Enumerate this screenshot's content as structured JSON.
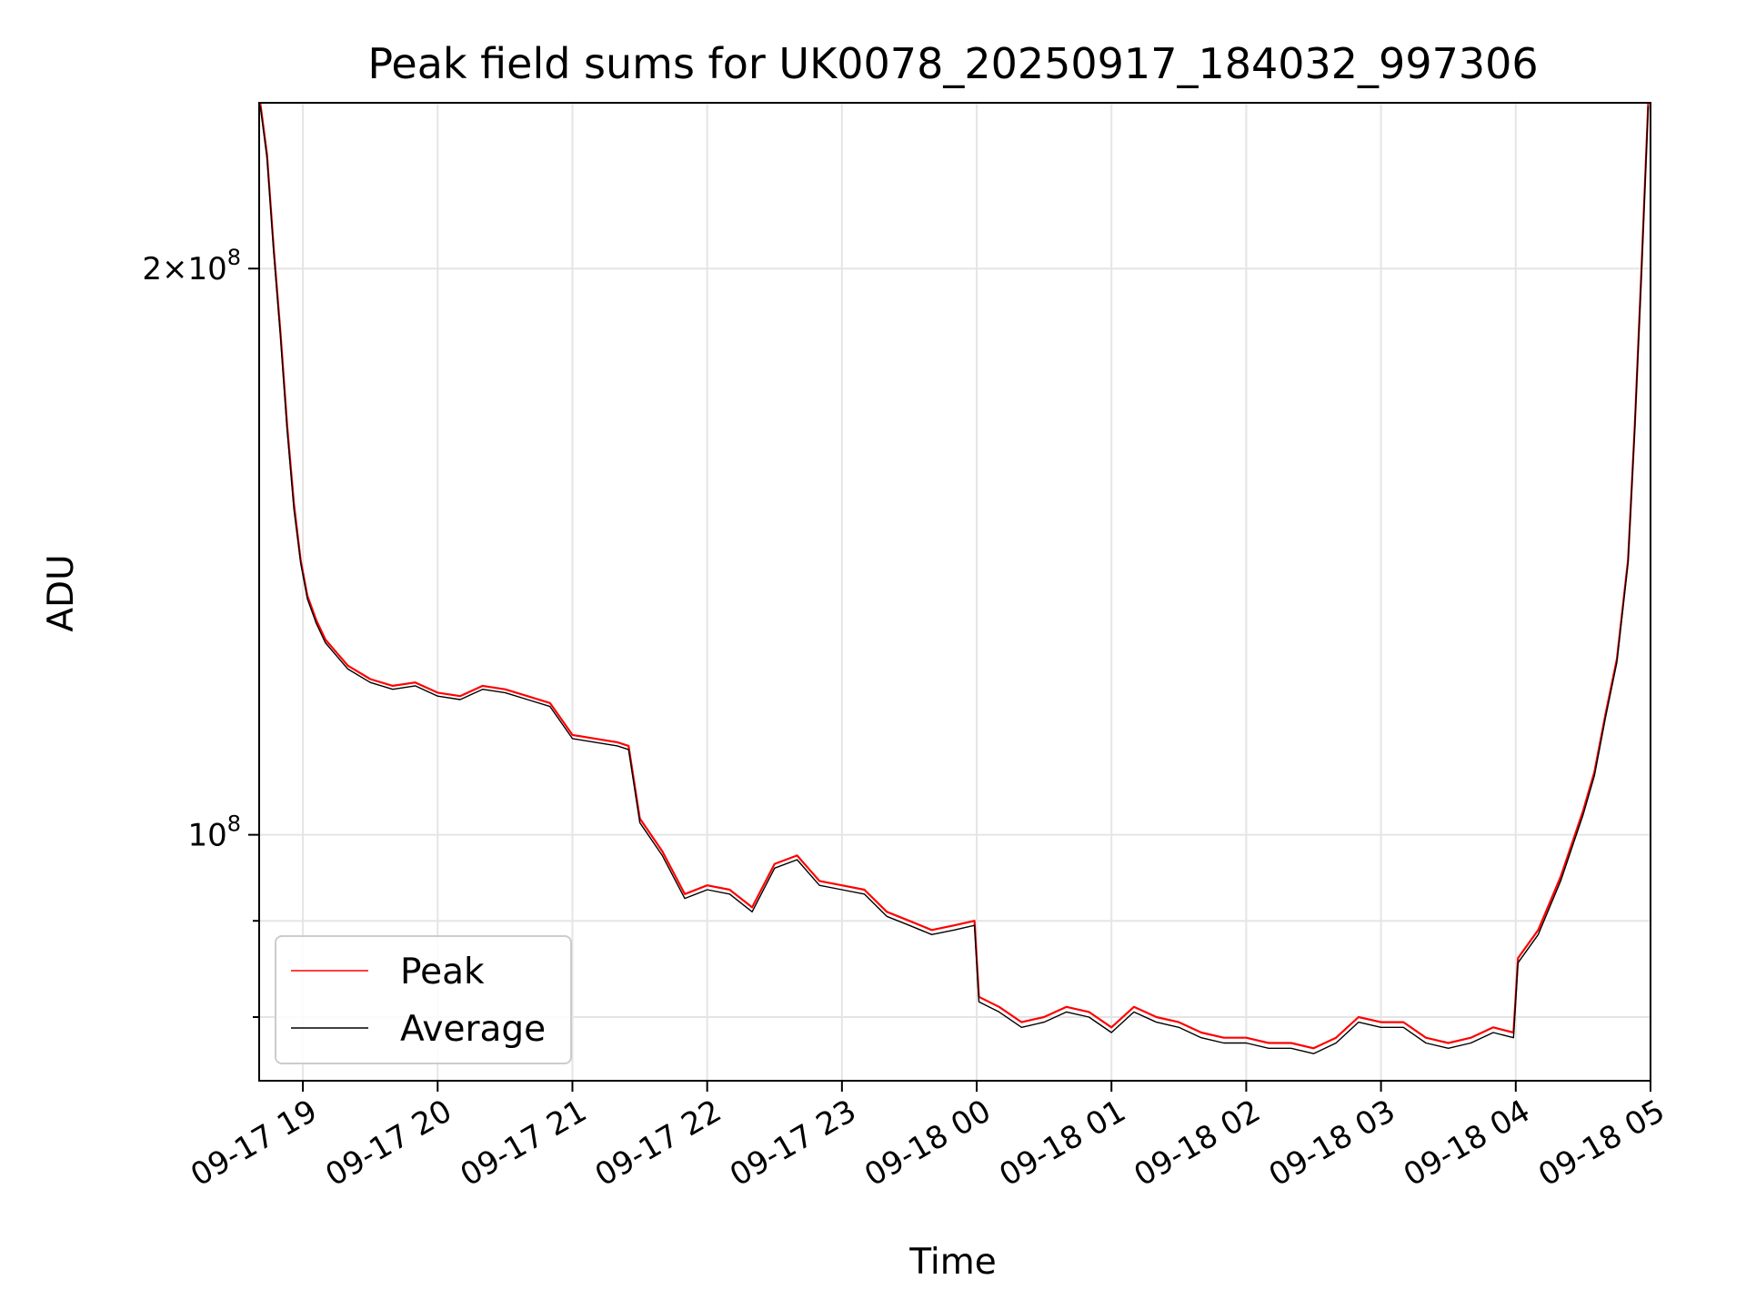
{
  "chart_data": {
    "type": "line",
    "title": "Peak field sums for UK0078_20250917_184032_997306",
    "xlabel": "Time",
    "ylabel": "ADU",
    "y_scale": "log",
    "ylim": [
      74000000,
      245000000
    ],
    "xlim": [
      "2025-09-17T18:40:32",
      "2025-09-18T05:00:00"
    ],
    "grid": true,
    "legend_position": "lower-left",
    "x_ticks": [
      "09-17 19",
      "09-17 20",
      "09-17 21",
      "09-17 22",
      "09-17 23",
      "09-18 00",
      "09-18 01",
      "09-18 02",
      "09-18 03",
      "09-18 04",
      "09-18 05"
    ],
    "x_tick_times": [
      "2025-09-17T19:00",
      "2025-09-17T20:00",
      "2025-09-17T21:00",
      "2025-09-17T22:00",
      "2025-09-17T23:00",
      "2025-09-18T00:00",
      "2025-09-18T01:00",
      "2025-09-18T02:00",
      "2025-09-18T03:00",
      "2025-09-18T04:00",
      "2025-09-18T05:00"
    ],
    "y_ticks": [
      {
        "value": 200000000,
        "label_main": "2×10",
        "label_exp": "8"
      },
      {
        "value": 100000000,
        "label_main": "10",
        "label_exp": "8"
      }
    ],
    "y_minor_ticks": [
      90000000,
      80000000
    ],
    "series": [
      {
        "name": "Peak",
        "color": "#ff0000",
        "x": [
          "2025-09-17T18:41",
          "2025-09-17T18:44",
          "2025-09-17T18:47",
          "2025-09-17T18:50",
          "2025-09-17T18:53",
          "2025-09-17T18:56",
          "2025-09-17T18:59",
          "2025-09-17T19:02",
          "2025-09-17T19:06",
          "2025-09-17T19:10",
          "2025-09-17T19:15",
          "2025-09-17T19:20",
          "2025-09-17T19:30",
          "2025-09-17T19:40",
          "2025-09-17T19:50",
          "2025-09-17T20:00",
          "2025-09-17T20:10",
          "2025-09-17T20:20",
          "2025-09-17T20:30",
          "2025-09-17T20:40",
          "2025-09-17T20:50",
          "2025-09-17T21:00",
          "2025-09-17T21:10",
          "2025-09-17T21:20",
          "2025-09-17T21:25",
          "2025-09-17T21:30",
          "2025-09-17T21:40",
          "2025-09-17T21:50",
          "2025-09-17T22:00",
          "2025-09-17T22:10",
          "2025-09-17T22:20",
          "2025-09-17T22:30",
          "2025-09-17T22:40",
          "2025-09-17T22:50",
          "2025-09-17T23:00",
          "2025-09-17T23:10",
          "2025-09-17T23:20",
          "2025-09-17T23:30",
          "2025-09-17T23:40",
          "2025-09-17T23:50",
          "2025-09-17T23:59",
          "2025-09-18T00:01",
          "2025-09-18T00:10",
          "2025-09-18T00:20",
          "2025-09-18T00:30",
          "2025-09-18T00:40",
          "2025-09-18T00:50",
          "2025-09-18T01:00",
          "2025-09-18T01:10",
          "2025-09-18T01:20",
          "2025-09-18T01:30",
          "2025-09-18T01:40",
          "2025-09-18T01:50",
          "2025-09-18T02:00",
          "2025-09-18T02:10",
          "2025-09-18T02:20",
          "2025-09-18T02:30",
          "2025-09-18T02:40",
          "2025-09-18T02:50",
          "2025-09-18T03:00",
          "2025-09-18T03:10",
          "2025-09-18T03:20",
          "2025-09-18T03:30",
          "2025-09-18T03:40",
          "2025-09-18T03:50",
          "2025-09-18T03:59",
          "2025-09-18T04:01",
          "2025-09-18T04:10",
          "2025-09-18T04:20",
          "2025-09-18T04:30",
          "2025-09-18T04:35",
          "2025-09-18T04:40",
          "2025-09-18T04:45",
          "2025-09-18T04:50",
          "2025-09-18T04:53",
          "2025-09-18T04:56",
          "2025-09-18T04:59"
        ],
        "values": [
          245000000,
          230000000,
          205000000,
          185000000,
          165000000,
          150000000,
          140000000,
          134000000,
          130000000,
          127000000,
          125000000,
          123000000,
          121000000,
          120000000,
          120500000,
          119000000,
          118500000,
          120000000,
          119500000,
          118500000,
          117500000,
          113000000,
          112500000,
          112000000,
          111500000,
          102000000,
          98000000,
          93000000,
          94000000,
          93500000,
          91500000,
          96500000,
          97500000,
          94500000,
          94000000,
          93500000,
          91000000,
          90000000,
          89000000,
          89500000,
          90000000,
          82000000,
          81000000,
          79500000,
          80000000,
          81000000,
          80500000,
          79000000,
          81000000,
          80000000,
          79500000,
          78500000,
          78000000,
          78000000,
          77500000,
          77500000,
          77000000,
          78000000,
          80000000,
          79500000,
          79500000,
          78000000,
          77500000,
          78000000,
          79000000,
          78500000,
          86000000,
          89000000,
          95000000,
          103000000,
          108000000,
          116000000,
          124000000,
          140000000,
          165000000,
          200000000,
          245000000
        ]
      },
      {
        "name": "Average",
        "color": "#000000",
        "x": [
          "2025-09-17T18:41",
          "2025-09-17T18:44",
          "2025-09-17T18:47",
          "2025-09-17T18:50",
          "2025-09-17T18:53",
          "2025-09-17T18:56",
          "2025-09-17T18:59",
          "2025-09-17T19:02",
          "2025-09-17T19:06",
          "2025-09-17T19:10",
          "2025-09-17T19:15",
          "2025-09-17T19:20",
          "2025-09-17T19:30",
          "2025-09-17T19:40",
          "2025-09-17T19:50",
          "2025-09-17T20:00",
          "2025-09-17T20:10",
          "2025-09-17T20:20",
          "2025-09-17T20:30",
          "2025-09-17T20:40",
          "2025-09-17T20:50",
          "2025-09-17T21:00",
          "2025-09-17T21:10",
          "2025-09-17T21:20",
          "2025-09-17T21:25",
          "2025-09-17T21:30",
          "2025-09-17T21:40",
          "2025-09-17T21:50",
          "2025-09-17T22:00",
          "2025-09-17T22:10",
          "2025-09-17T22:20",
          "2025-09-17T22:30",
          "2025-09-17T22:40",
          "2025-09-17T22:50",
          "2025-09-17T23:00",
          "2025-09-17T23:10",
          "2025-09-17T23:20",
          "2025-09-17T23:30",
          "2025-09-17T23:40",
          "2025-09-17T23:50",
          "2025-09-17T23:59",
          "2025-09-18T00:01",
          "2025-09-18T00:10",
          "2025-09-18T00:20",
          "2025-09-18T00:30",
          "2025-09-18T00:40",
          "2025-09-18T00:50",
          "2025-09-18T01:00",
          "2025-09-18T01:10",
          "2025-09-18T01:20",
          "2025-09-18T01:30",
          "2025-09-18T01:40",
          "2025-09-18T01:50",
          "2025-09-18T02:00",
          "2025-09-18T02:10",
          "2025-09-18T02:20",
          "2025-09-18T02:30",
          "2025-09-18T02:40",
          "2025-09-18T02:50",
          "2025-09-18T03:00",
          "2025-09-18T03:10",
          "2025-09-18T03:20",
          "2025-09-18T03:30",
          "2025-09-18T03:40",
          "2025-09-18T03:50",
          "2025-09-18T03:59",
          "2025-09-18T04:01",
          "2025-09-18T04:10",
          "2025-09-18T04:20",
          "2025-09-18T04:30",
          "2025-09-18T04:35",
          "2025-09-18T04:40",
          "2025-09-18T04:45",
          "2025-09-18T04:50",
          "2025-09-18T04:53",
          "2025-09-18T04:56",
          "2025-09-18T04:59"
        ],
        "values": [
          244000000,
          229000000,
          204000000,
          184000000,
          164000000,
          149000000,
          139500000,
          133500000,
          129500000,
          126500000,
          124500000,
          122500000,
          120500000,
          119500000,
          120000000,
          118500000,
          118000000,
          119500000,
          119000000,
          118000000,
          117000000,
          112500000,
          112000000,
          111500000,
          111000000,
          101500000,
          97500000,
          92500000,
          93500000,
          93000000,
          91000000,
          96000000,
          97000000,
          94000000,
          93500000,
          93000000,
          90500000,
          89500000,
          88500000,
          89000000,
          89500000,
          81500000,
          80500000,
          79000000,
          79500000,
          80500000,
          80000000,
          78500000,
          80500000,
          79500000,
          79000000,
          78000000,
          77500000,
          77500000,
          77000000,
          77000000,
          76500000,
          77500000,
          79500000,
          79000000,
          79000000,
          77500000,
          77000000,
          77500000,
          78500000,
          78000000,
          85500000,
          88500000,
          94500000,
          102500000,
          107500000,
          115500000,
          123500000,
          139500000,
          164500000,
          199000000,
          244000000
        ]
      }
    ]
  }
}
